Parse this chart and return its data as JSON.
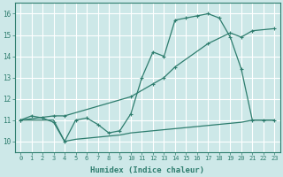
{
  "bg_color": "#cde8e8",
  "grid_color": "#b0d0d0",
  "line_color": "#2e7d6e",
  "xlabel": "Humidex (Indice chaleur)",
  "xlim": [
    -0.5,
    23.5
  ],
  "ylim": [
    9.5,
    16.5
  ],
  "xticks": [
    0,
    1,
    2,
    3,
    4,
    5,
    6,
    7,
    8,
    9,
    10,
    11,
    12,
    13,
    14,
    15,
    16,
    17,
    18,
    19,
    20,
    21,
    22,
    23
  ],
  "yticks": [
    10,
    11,
    12,
    13,
    14,
    15,
    16
  ],
  "line1_x": [
    0,
    1,
    2,
    3,
    4,
    5,
    6,
    7,
    8,
    9,
    10,
    11,
    12,
    13,
    14,
    15,
    16,
    17,
    18,
    19,
    20,
    21,
    22,
    23
  ],
  "line1_y": [
    11.0,
    11.2,
    11.1,
    10.9,
    10.0,
    11.0,
    11.1,
    10.8,
    10.4,
    10.5,
    11.3,
    13.0,
    14.2,
    14.0,
    15.7,
    15.8,
    15.9,
    16.0,
    15.8,
    14.9,
    13.4,
    11.0,
    11.0,
    11.0
  ],
  "line2_x": [
    0,
    3,
    4,
    10,
    12,
    13,
    14,
    17,
    19,
    20,
    21,
    23
  ],
  "line2_y": [
    11.0,
    11.2,
    11.2,
    12.1,
    12.7,
    13.0,
    13.5,
    14.6,
    15.1,
    14.9,
    15.2,
    15.3
  ],
  "line3_x": [
    0,
    1,
    2,
    3,
    4,
    5,
    6,
    7,
    8,
    9,
    10,
    11,
    12,
    13,
    14,
    15,
    16,
    17,
    18,
    19,
    20,
    21,
    22,
    23
  ],
  "line3_y": [
    11.0,
    11.0,
    11.0,
    11.0,
    10.0,
    10.1,
    10.15,
    10.2,
    10.25,
    10.3,
    10.4,
    10.45,
    10.5,
    10.55,
    10.6,
    10.65,
    10.7,
    10.75,
    10.8,
    10.85,
    10.9,
    11.0,
    11.0,
    11.0
  ],
  "tick_fontsize": 5.0,
  "xlabel_fontsize": 6.5
}
